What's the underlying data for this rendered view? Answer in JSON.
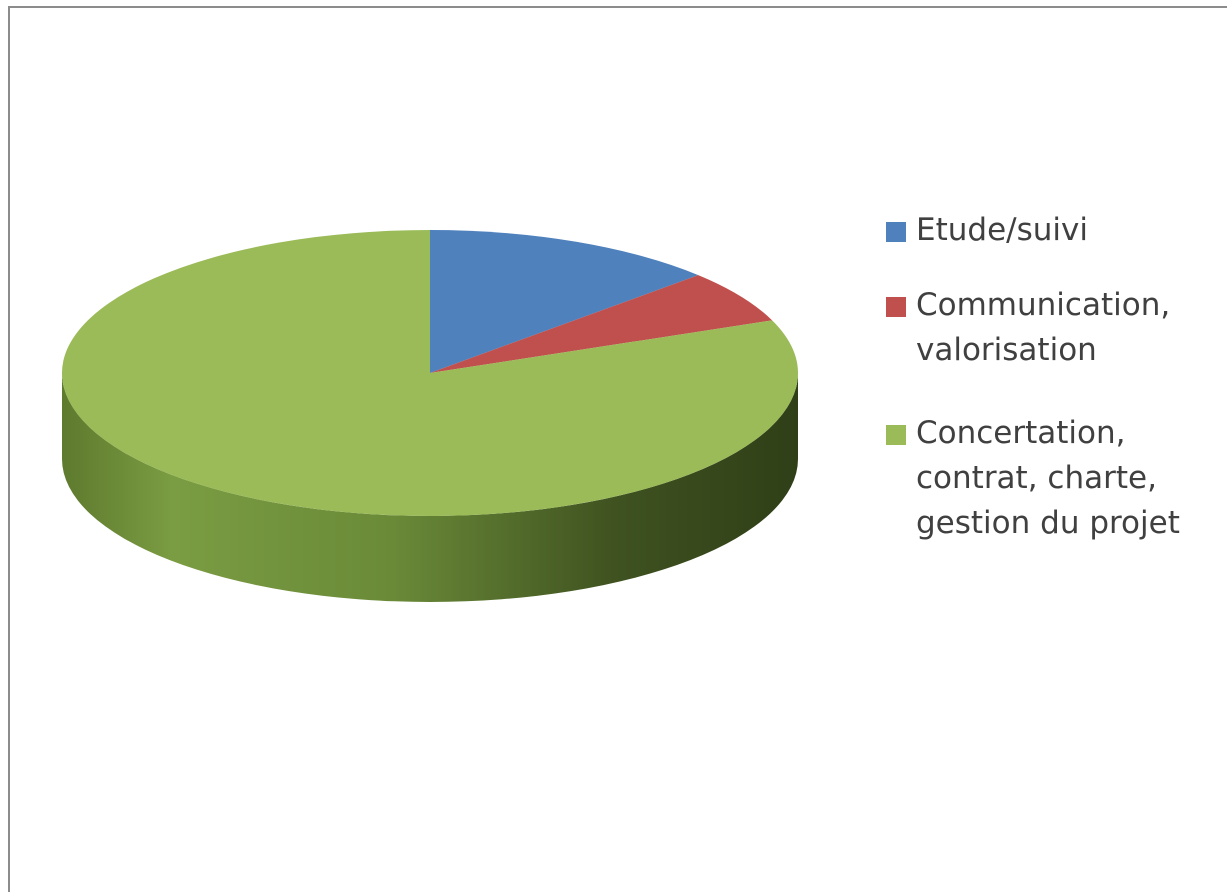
{
  "chart_data": {
    "type": "pie",
    "title": "",
    "style": "3d",
    "categories": [
      "Etude/suivi",
      "Communication, valorisation",
      "Concertation, contrat, charte, gestion du projet"
    ],
    "values": [
      13,
      6,
      81
    ],
    "colors": [
      "#4f81bd",
      "#c0504d",
      "#9bbb59"
    ],
    "legend_position": "right"
  },
  "legend": {
    "items": [
      {
        "label": "Etude/suivi",
        "color": "#4f81bd"
      },
      {
        "label": "Communication,\nvalorisation",
        "color": "#c0504d"
      },
      {
        "label": "Concertation,\ncontrat, charte,\ngestion du projet",
        "color": "#9bbb59"
      }
    ]
  }
}
